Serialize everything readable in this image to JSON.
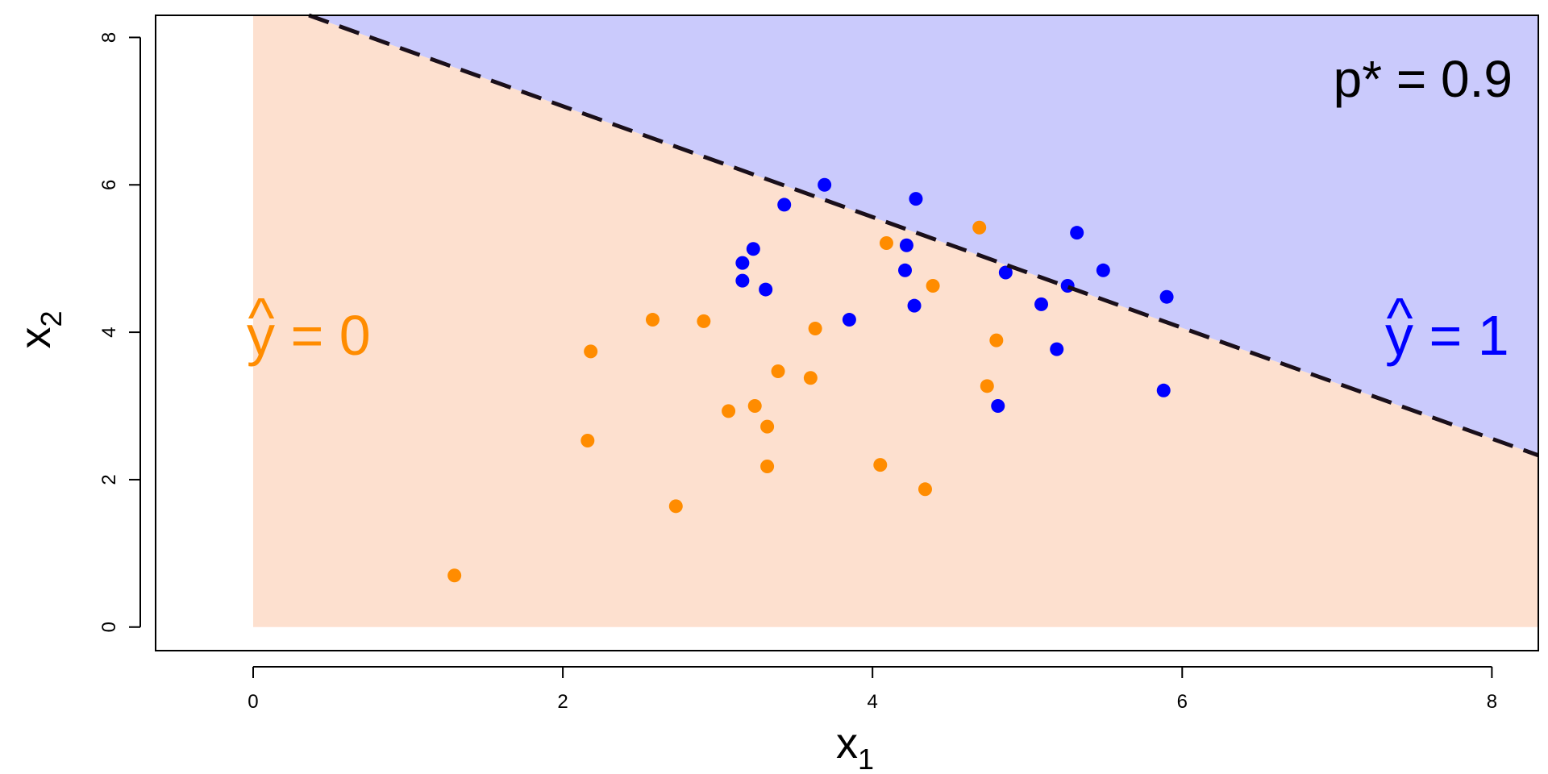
{
  "chart_data": {
    "type": "scatter",
    "title": "",
    "xlabel": {
      "base": "x",
      "sub": "1"
    },
    "ylabel": {
      "base": "x",
      "sub": "2"
    },
    "xlim": [
      -0.63,
      8.3
    ],
    "ylim": [
      -0.32,
      8.3
    ],
    "xticks": [
      0,
      2,
      4,
      6,
      8
    ],
    "yticks": [
      0,
      2,
      4,
      6,
      8
    ],
    "grid": false,
    "regions": [
      {
        "name": "y_hat_0",
        "color": "#fde0cf",
        "label": {
          "base": "y",
          "hat": "^",
          "rest": " = 0"
        },
        "label_color": "#ff8c00"
      },
      {
        "name": "y_hat_1",
        "color": "#cacafc",
        "label": {
          "base": "y",
          "hat": "^",
          "rest": " = 1"
        },
        "label_color": "#0000ff"
      }
    ],
    "boundary": {
      "style": "dashed",
      "color": "#1a0f1a",
      "points": [
        [
          0.36,
          8.3
        ],
        [
          8.3,
          2.33
        ]
      ]
    },
    "annotation": "p* = 0.9",
    "series": [
      {
        "color": "#ff8c00",
        "points": [
          [
            1.3,
            0.7
          ],
          [
            2.16,
            2.53
          ],
          [
            2.18,
            3.74
          ],
          [
            2.58,
            4.17
          ],
          [
            2.73,
            1.64
          ],
          [
            2.91,
            4.15
          ],
          [
            3.07,
            2.93
          ],
          [
            3.24,
            3.0
          ],
          [
            3.32,
            2.72
          ],
          [
            3.32,
            2.18
          ],
          [
            3.39,
            3.47
          ],
          [
            3.6,
            3.38
          ],
          [
            3.63,
            4.05
          ],
          [
            4.05,
            2.2
          ],
          [
            4.09,
            5.21
          ],
          [
            4.34,
            1.87
          ],
          [
            4.39,
            4.63
          ],
          [
            4.69,
            5.42
          ],
          [
            4.74,
            3.27
          ],
          [
            4.8,
            3.89
          ]
        ]
      },
      {
        "color": "#0000ff",
        "points": [
          [
            3.16,
            4.94
          ],
          [
            3.16,
            4.7
          ],
          [
            3.23,
            5.13
          ],
          [
            3.31,
            4.58
          ],
          [
            3.43,
            5.73
          ],
          [
            3.69,
            6.0
          ],
          [
            3.85,
            4.17
          ],
          [
            4.21,
            4.84
          ],
          [
            4.22,
            5.18
          ],
          [
            4.27,
            4.36
          ],
          [
            4.28,
            5.81
          ],
          [
            4.81,
            3.0
          ],
          [
            4.86,
            4.81
          ],
          [
            5.09,
            4.38
          ],
          [
            5.19,
            3.77
          ],
          [
            5.26,
            4.63
          ],
          [
            5.32,
            5.35
          ],
          [
            5.49,
            4.84
          ],
          [
            5.88,
            3.21
          ],
          [
            5.9,
            4.48
          ]
        ]
      }
    ]
  }
}
